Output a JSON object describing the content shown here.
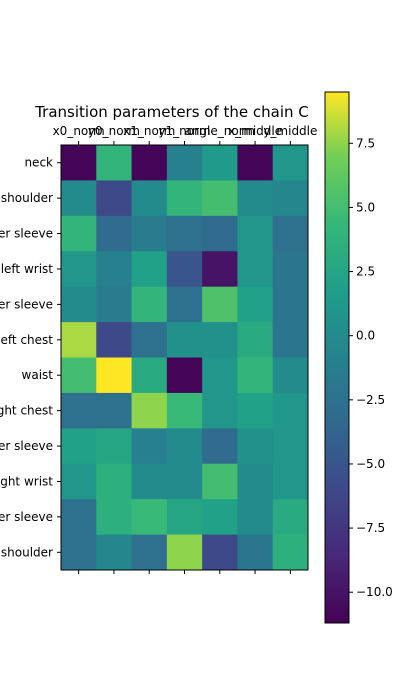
{
  "chart_data": {
    "type": "heatmap",
    "title": "Transition parameters of the chain C",
    "x_tick_labels": [
      "x0_norm",
      "y0_norm",
      "x1_norm",
      "y1_norm",
      "angle_norm",
      "x_middle",
      "y_middle"
    ],
    "y_tick_labels": [
      "neck",
      "left shoulder",
      "left upper sleeve",
      "left wrist",
      "left lower sleeve",
      "left chest",
      "waist",
      "right chest",
      "right lower sleeve",
      "right wrist",
      "right upper sleeve",
      "right shoulder"
    ],
    "values": [
      [
        -11.0,
        4.0,
        -11.0,
        -1.0,
        1.5,
        -11.0,
        1.0
      ],
      [
        0.0,
        -6.0,
        0.0,
        4.0,
        5.0,
        0.0,
        -0.5
      ],
      [
        4.0,
        -3.0,
        -1.5,
        -2.5,
        -3.0,
        1.0,
        -2.5
      ],
      [
        1.0,
        -1.0,
        2.0,
        -5.0,
        -10.0,
        1.0,
        -2.0
      ],
      [
        0.0,
        -1.5,
        4.0,
        -2.5,
        5.5,
        2.0,
        -2.0
      ],
      [
        8.0,
        -6.0,
        -2.5,
        0.5,
        0.5,
        3.0,
        -2.0
      ],
      [
        5.0,
        9.5,
        3.0,
        -11.0,
        1.0,
        4.0,
        0.0
      ],
      [
        -2.5,
        -2.5,
        7.5,
        4.5,
        1.0,
        2.0,
        1.0
      ],
      [
        2.0,
        2.5,
        -1.0,
        0.0,
        -3.0,
        0.5,
        1.0
      ],
      [
        1.0,
        3.5,
        0.0,
        0.0,
        5.0,
        0.0,
        1.0
      ],
      [
        -2.5,
        3.5,
        4.5,
        2.5,
        2.0,
        0.0,
        3.0
      ],
      [
        -2.5,
        -0.5,
        -2.5,
        7.5,
        -6.0,
        -2.0,
        3.5
      ]
    ],
    "colormap": "viridis",
    "vmin": -11.2,
    "vmax": 9.5,
    "colorbar_ticks": [
      7.5,
      5.0,
      2.5,
      0.0,
      -2.5,
      -5.0,
      -7.5,
      -10.0
    ]
  }
}
